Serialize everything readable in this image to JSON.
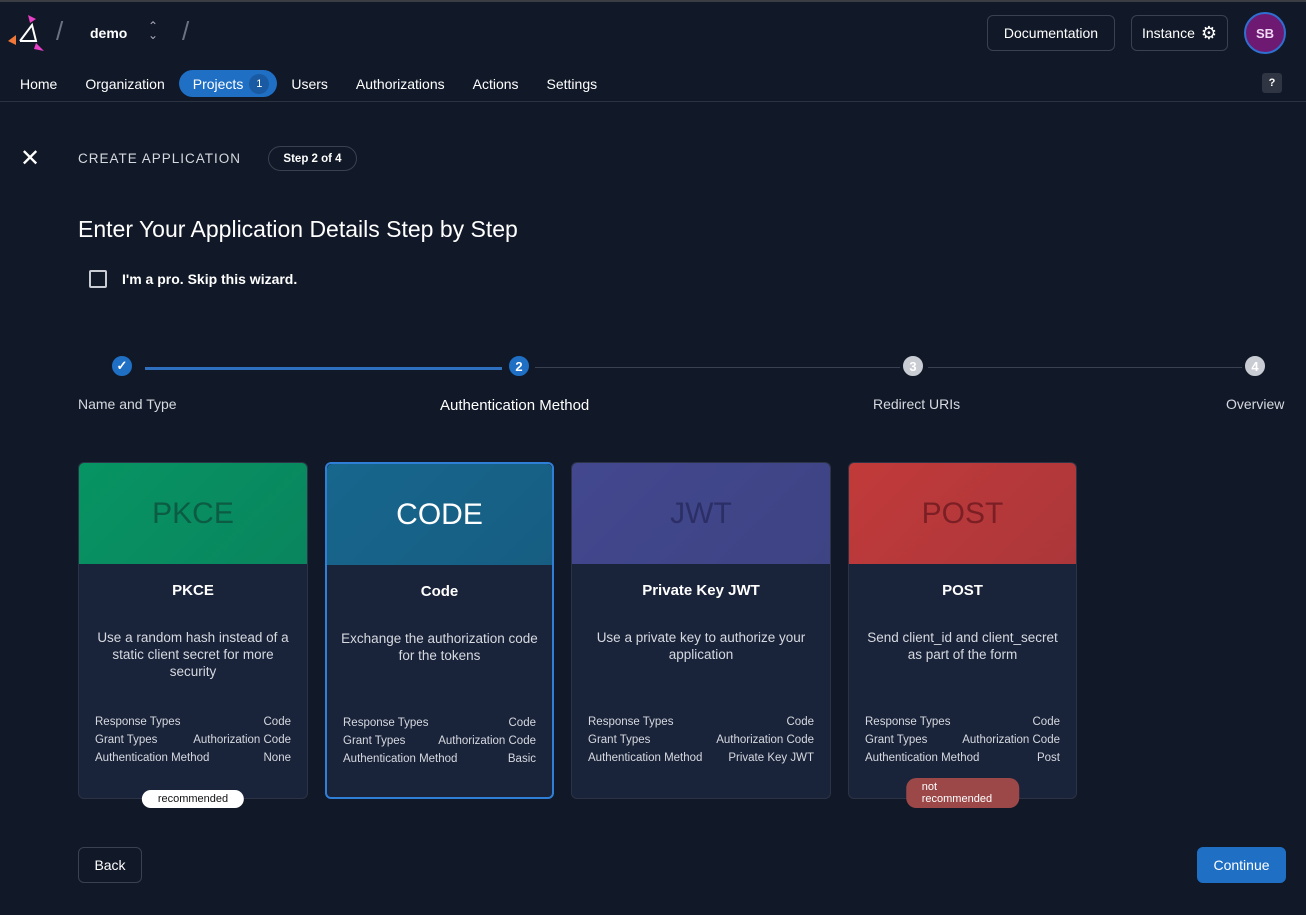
{
  "header": {
    "org": "demo",
    "documentation": "Documentation",
    "instance": "Instance",
    "avatar": "SB",
    "help": "?"
  },
  "nav": [
    {
      "label": "Home"
    },
    {
      "label": "Organization"
    },
    {
      "label": "Projects",
      "badge": "1"
    },
    {
      "label": "Users"
    },
    {
      "label": "Authorizations"
    },
    {
      "label": "Actions"
    },
    {
      "label": "Settings"
    }
  ],
  "wizard": {
    "title": "CREATE APPLICATION",
    "step": "Step 2 of 4",
    "heading": "Enter Your Application Details Step by Step",
    "skip": "I'm a pro. Skip this wizard.",
    "skip_checked": false
  },
  "steps": [
    {
      "num": "✓",
      "label": "Name and Type",
      "state": "done"
    },
    {
      "num": "2",
      "label": "Authentication Method",
      "state": "active"
    },
    {
      "num": "3",
      "label": "Redirect URIs",
      "state": "pending"
    },
    {
      "num": "4",
      "label": "Overview",
      "state": "pending"
    }
  ],
  "prop_labels": [
    "Response Types",
    "Grant Types",
    "Authentication Method"
  ],
  "cards": [
    {
      "banner": "PKCE",
      "title": "PKCE",
      "desc": "Use a random hash instead of a static client secret for more security",
      "values": [
        "Code",
        "Authorization Code",
        "None"
      ],
      "pill": "recommended",
      "color": "#079463"
    },
    {
      "banner": "CODE",
      "title": "Code",
      "desc": "Exchange the authorization code for the tokens",
      "values": [
        "Code",
        "Authorization Code",
        "Basic"
      ],
      "selected": true,
      "color": "#17668d"
    },
    {
      "banner": "JWT",
      "title": "Private Key JWT",
      "desc": "Use a private key to authorize your application",
      "values": [
        "Code",
        "Authorization Code",
        "Private Key JWT"
      ],
      "color": "#43488f"
    },
    {
      "banner": "POST",
      "title": "POST",
      "desc": "Send client_id and client_secret as part of the form",
      "values": [
        "Code",
        "Authorization Code",
        "Post"
      ],
      "pill": "not recommended",
      "color": "#c23a3a"
    }
  ],
  "actions": {
    "back": "Back",
    "continue": "Continue"
  }
}
